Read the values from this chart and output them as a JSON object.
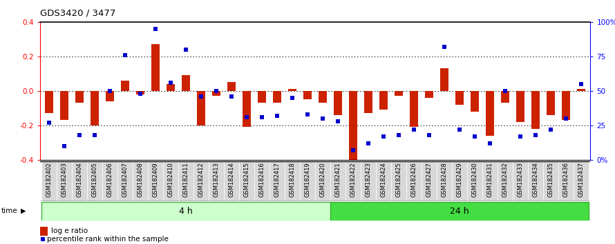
{
  "title": "GDS3420 / 3477",
  "samples": [
    "GSM182402",
    "GSM182403",
    "GSM182404",
    "GSM182405",
    "GSM182406",
    "GSM182407",
    "GSM182408",
    "GSM182409",
    "GSM182410",
    "GSM182411",
    "GSM182412",
    "GSM182413",
    "GSM182414",
    "GSM182415",
    "GSM182416",
    "GSM182417",
    "GSM182418",
    "GSM182419",
    "GSM182420",
    "GSM182421",
    "GSM182422",
    "GSM182423",
    "GSM182424",
    "GSM182425",
    "GSM182426",
    "GSM182427",
    "GSM182428",
    "GSM182429",
    "GSM182430",
    "GSM182431",
    "GSM182432",
    "GSM182433",
    "GSM182434",
    "GSM182435",
    "GSM182436",
    "GSM182437"
  ],
  "log_ratio": [
    -0.13,
    -0.17,
    -0.07,
    -0.2,
    -0.06,
    0.06,
    -0.02,
    0.27,
    0.04,
    0.09,
    -0.2,
    -0.03,
    0.05,
    -0.21,
    -0.07,
    -0.07,
    0.01,
    -0.05,
    -0.07,
    -0.14,
    -0.41,
    -0.13,
    -0.11,
    -0.03,
    -0.21,
    -0.04,
    0.13,
    -0.08,
    -0.12,
    -0.26,
    -0.07,
    -0.18,
    -0.22,
    -0.14,
    -0.17,
    0.01
  ],
  "percentile": [
    27,
    10,
    18,
    18,
    50,
    76,
    48,
    95,
    56,
    80,
    46,
    50,
    46,
    31,
    31,
    32,
    45,
    33,
    30,
    28,
    7,
    12,
    17,
    18,
    22,
    18,
    82,
    22,
    17,
    12,
    50,
    17,
    18,
    22,
    30,
    55
  ],
  "group1_count": 19,
  "group2_count": 17,
  "group1_label": "4 h",
  "group2_label": "24 h",
  "ylim": [
    -0.4,
    0.4
  ],
  "yticks_left": [
    -0.4,
    -0.2,
    0.0,
    0.2,
    0.4
  ],
  "yticks_right": [
    0,
    25,
    50,
    75,
    100
  ],
  "bar_color": "#cc2200",
  "dot_color": "#0000cc",
  "group1_facecolor": "#ccffcc",
  "group2_facecolor": "#44dd44",
  "group_edgecolor": "#22aa22",
  "bar_width": 0.55
}
